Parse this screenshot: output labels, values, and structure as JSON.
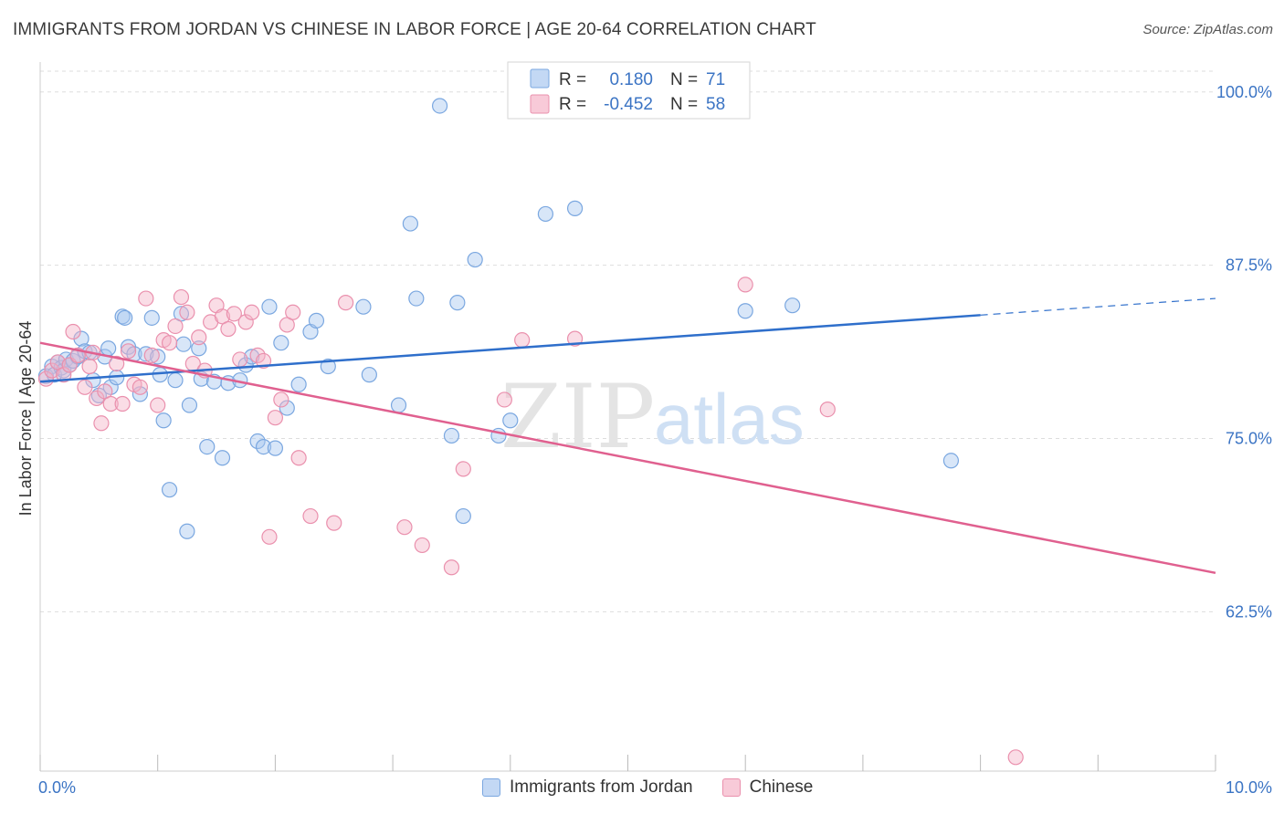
{
  "title": "IMMIGRANTS FROM JORDAN VS CHINESE IN LABOR FORCE | AGE 20-64 CORRELATION CHART",
  "source": "Source: ZipAtlas.com",
  "colors": {
    "blue_fill": "#a9c8f0",
    "blue_stroke": "#7aa7e0",
    "blue_line": "#2f6fcb",
    "pink_fill": "#f5b3c8",
    "pink_stroke": "#ea90ad",
    "pink_line": "#e0608f",
    "tick_label": "#3b74c4",
    "grid": "#dddddd"
  },
  "legend": {
    "r_label": "R =",
    "n_label": "N =",
    "rows": [
      {
        "r": "0.180",
        "n": "71",
        "color": "blue"
      },
      {
        "r": "-0.452",
        "n": "58",
        "color": "pink"
      }
    ]
  },
  "watermark": {
    "zip": "ZIP",
    "atlas": "atlas"
  },
  "chart_data": {
    "type": "scatter",
    "ylabel": "In Labor Force | Age 20-64",
    "xlim": [
      0,
      10
    ],
    "ylim": [
      51,
      101.5
    ],
    "x_tick_labels": [
      "0.0%",
      "10.0%"
    ],
    "y_ticks": [
      62.5,
      75.0,
      87.5,
      100.0
    ],
    "y_tick_labels": [
      "62.5%",
      "75.0%",
      "87.5%",
      "100.0%"
    ],
    "grid": true,
    "series": [
      {
        "name": "Immigrants from Jordan",
        "color": "blue",
        "trend": {
          "x0": 0,
          "y0": 79.1,
          "x1": 8.0,
          "y1": 83.9,
          "dash_x1": 10,
          "dash_y1": 85.1
        },
        "points": [
          [
            0.05,
            79.5
          ],
          [
            0.1,
            80.2
          ],
          [
            0.12,
            79.6
          ],
          [
            0.15,
            80.5
          ],
          [
            0.18,
            80.1
          ],
          [
            0.2,
            79.9
          ],
          [
            0.22,
            80.7
          ],
          [
            0.25,
            80.3
          ],
          [
            0.28,
            80.6
          ],
          [
            0.32,
            80.9
          ],
          [
            0.35,
            82.2
          ],
          [
            0.38,
            81.3
          ],
          [
            0.42,
            81.2
          ],
          [
            0.45,
            79.2
          ],
          [
            0.5,
            78.1
          ],
          [
            0.55,
            80.9
          ],
          [
            0.58,
            81.5
          ],
          [
            0.6,
            78.7
          ],
          [
            0.65,
            79.4
          ],
          [
            0.7,
            83.8
          ],
          [
            0.72,
            83.7
          ],
          [
            0.75,
            81.6
          ],
          [
            0.8,
            81.1
          ],
          [
            0.85,
            78.2
          ],
          [
            0.9,
            81.1
          ],
          [
            0.95,
            83.7
          ],
          [
            1.0,
            80.9
          ],
          [
            1.02,
            79.6
          ],
          [
            1.05,
            76.3
          ],
          [
            1.1,
            71.3
          ],
          [
            1.15,
            79.2
          ],
          [
            1.2,
            84.0
          ],
          [
            1.22,
            81.8
          ],
          [
            1.27,
            77.4
          ],
          [
            1.25,
            68.3
          ],
          [
            1.35,
            81.5
          ],
          [
            1.37,
            79.3
          ],
          [
            1.42,
            74.4
          ],
          [
            1.48,
            79.1
          ],
          [
            1.55,
            73.6
          ],
          [
            1.6,
            79.0
          ],
          [
            1.7,
            79.2
          ],
          [
            1.75,
            80.3
          ],
          [
            1.8,
            80.9
          ],
          [
            1.85,
            74.8
          ],
          [
            1.9,
            74.4
          ],
          [
            1.95,
            84.5
          ],
          [
            2.0,
            74.3
          ],
          [
            2.05,
            81.9
          ],
          [
            2.1,
            77.2
          ],
          [
            2.2,
            78.9
          ],
          [
            2.3,
            82.7
          ],
          [
            2.35,
            83.5
          ],
          [
            2.45,
            80.2
          ],
          [
            2.75,
            84.5
          ],
          [
            2.8,
            79.6
          ],
          [
            3.05,
            77.4
          ],
          [
            3.15,
            90.5
          ],
          [
            3.2,
            85.1
          ],
          [
            3.4,
            99.0
          ],
          [
            3.5,
            75.2
          ],
          [
            3.55,
            84.8
          ],
          [
            3.6,
            69.4
          ],
          [
            3.7,
            87.9
          ],
          [
            3.9,
            75.2
          ],
          [
            4.0,
            76.3
          ],
          [
            4.3,
            91.2
          ],
          [
            4.55,
            91.6
          ],
          [
            6.0,
            84.2
          ],
          [
            6.4,
            84.6
          ],
          [
            7.75,
            73.4
          ]
        ]
      },
      {
        "name": "Chinese",
        "color": "pink",
        "trend": {
          "x0": 0,
          "y0": 81.9,
          "x1": 10,
          "y1": 65.3
        },
        "points": [
          [
            0.05,
            79.3
          ],
          [
            0.1,
            79.9
          ],
          [
            0.15,
            80.5
          ],
          [
            0.2,
            79.6
          ],
          [
            0.25,
            80.3
          ],
          [
            0.28,
            82.7
          ],
          [
            0.32,
            81.0
          ],
          [
            0.38,
            78.7
          ],
          [
            0.42,
            80.2
          ],
          [
            0.45,
            81.2
          ],
          [
            0.48,
            77.9
          ],
          [
            0.52,
            76.1
          ],
          [
            0.55,
            78.4
          ],
          [
            0.6,
            77.5
          ],
          [
            0.65,
            80.4
          ],
          [
            0.7,
            77.5
          ],
          [
            0.75,
            81.3
          ],
          [
            0.8,
            78.9
          ],
          [
            0.85,
            78.7
          ],
          [
            0.9,
            85.1
          ],
          [
            0.95,
            81.0
          ],
          [
            1.0,
            77.4
          ],
          [
            1.05,
            82.1
          ],
          [
            1.1,
            81.9
          ],
          [
            1.15,
            83.1
          ],
          [
            1.2,
            85.2
          ],
          [
            1.25,
            84.1
          ],
          [
            1.3,
            80.4
          ],
          [
            1.35,
            82.3
          ],
          [
            1.4,
            79.9
          ],
          [
            1.45,
            83.4
          ],
          [
            1.5,
            84.6
          ],
          [
            1.55,
            83.8
          ],
          [
            1.6,
            82.9
          ],
          [
            1.65,
            84.0
          ],
          [
            1.7,
            80.7
          ],
          [
            1.75,
            83.4
          ],
          [
            1.8,
            84.1
          ],
          [
            1.85,
            81.0
          ],
          [
            1.9,
            80.6
          ],
          [
            1.95,
            67.9
          ],
          [
            2.0,
            76.5
          ],
          [
            2.05,
            77.8
          ],
          [
            2.1,
            83.2
          ],
          [
            2.15,
            84.1
          ],
          [
            2.2,
            73.6
          ],
          [
            2.3,
            69.4
          ],
          [
            2.5,
            68.9
          ],
          [
            2.6,
            84.8
          ],
          [
            3.1,
            68.6
          ],
          [
            3.25,
            67.3
          ],
          [
            3.5,
            65.7
          ],
          [
            3.6,
            72.8
          ],
          [
            3.95,
            77.8
          ],
          [
            4.1,
            82.1
          ],
          [
            4.55,
            82.2
          ],
          [
            6.0,
            86.1
          ],
          [
            6.7,
            77.1
          ],
          [
            8.3,
            52.0
          ]
        ]
      }
    ]
  }
}
